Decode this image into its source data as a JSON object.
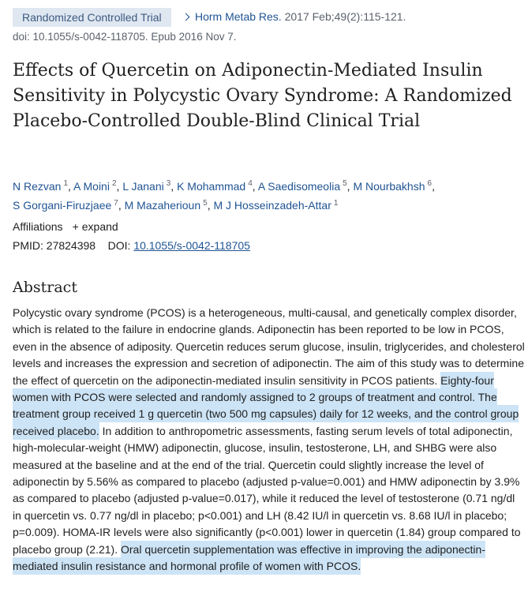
{
  "header": {
    "badge": "Randomized Controlled Trial",
    "journal": "Horm Metab Res.",
    "citation": "2017 Feb;49(2):115-121.",
    "doi_line": "doi: 10.1055/s-0042-118705. Epub 2016 Nov 7."
  },
  "title": "Effects of Quercetin on Adiponectin-Mediated Insulin Sensitivity in Polycystic Ovary Syndrome: A Randomized Placebo-Controlled Double-Blind Clinical Trial",
  "authors": [
    {
      "name": "N Rezvan",
      "sup": "1",
      "sep": ","
    },
    {
      "name": "A Moini",
      "sup": "2",
      "sep": ","
    },
    {
      "name": "L Janani",
      "sup": "3",
      "sep": ","
    },
    {
      "name": "K Mohammad",
      "sup": "4",
      "sep": ","
    },
    {
      "name": "A Saedisomeolia",
      "sup": "5",
      "sep": ","
    },
    {
      "name": "M Nourbakhsh",
      "sup": "6",
      "sep": ","
    },
    {
      "name": "S Gorgani-Firuzjaee",
      "sup": "7",
      "sep": ","
    },
    {
      "name": "M Mazaherioun",
      "sup": "5",
      "sep": ","
    },
    {
      "name": "M J Hosseinzadeh-Attar",
      "sup": "1"
    }
  ],
  "affiliations": {
    "label": "Affiliations",
    "expand": "expand"
  },
  "ids": {
    "pmid_label": "PMID:",
    "pmid": "27824398",
    "doi_label": "DOI:",
    "doi": "10.1055/s-0042-118705"
  },
  "abstract": {
    "heading": "Abstract",
    "segments": [
      {
        "text": "Polycystic ovary syndrome (PCOS) is a heterogeneous, multi-causal, and genetically complex disorder, which is related to the failure in endocrine glands. Adiponectin has been reported to be low in PCOS, even in the absence of adiposity. Quercetin reduces serum glucose, insulin, triglycerides, and cholesterol levels and increases the expression and secretion of adiponectin. The aim of this study was to determine the effect of quercetin on the adiponectin-mediated insulin sensitivity in PCOS patients.",
        "highlight": false
      },
      {
        "text": "Eighty-four women with PCOS were selected and randomly assigned to 2 groups of treatment and control. The treatment group received 1 g quercetin (two 500 mg capsules) daily for 12 weeks, and the control group received placebo.",
        "highlight": true
      },
      {
        "text": "In addition to anthropometric assessments, fasting serum levels of total adiponectin, high-molecular-weight (HMW) adiponectin, glucose, insulin, testosterone, LH, and SHBG were also measured at the baseline and at the end of the trial. Quercetin could slightly increase the level of adiponectin by 5.56% as compared to placebo (adjusted p-value=0.001) and HMW adiponectin by 3.9% as compared to placebo (adjusted p-value=0.017), while it reduced the level of testosterone (0.71 ng/dl in quercetin vs. 0.77 ng/dl in placebo; p<0.001) and LH (8.42 IU/l in quercetin vs. 8.68 IU/l in placebo; p=0.009). HOMA-IR levels were also significantly (p<0.001) lower in quercetin (1.84) group compared to placebo group (2.21).",
        "highlight": false
      },
      {
        "text": "Oral quercetin supplementation was effective in improving the adiponectin-mediated insulin resistance and hormonal profile of women with PCOS.",
        "highlight": true
      }
    ]
  }
}
